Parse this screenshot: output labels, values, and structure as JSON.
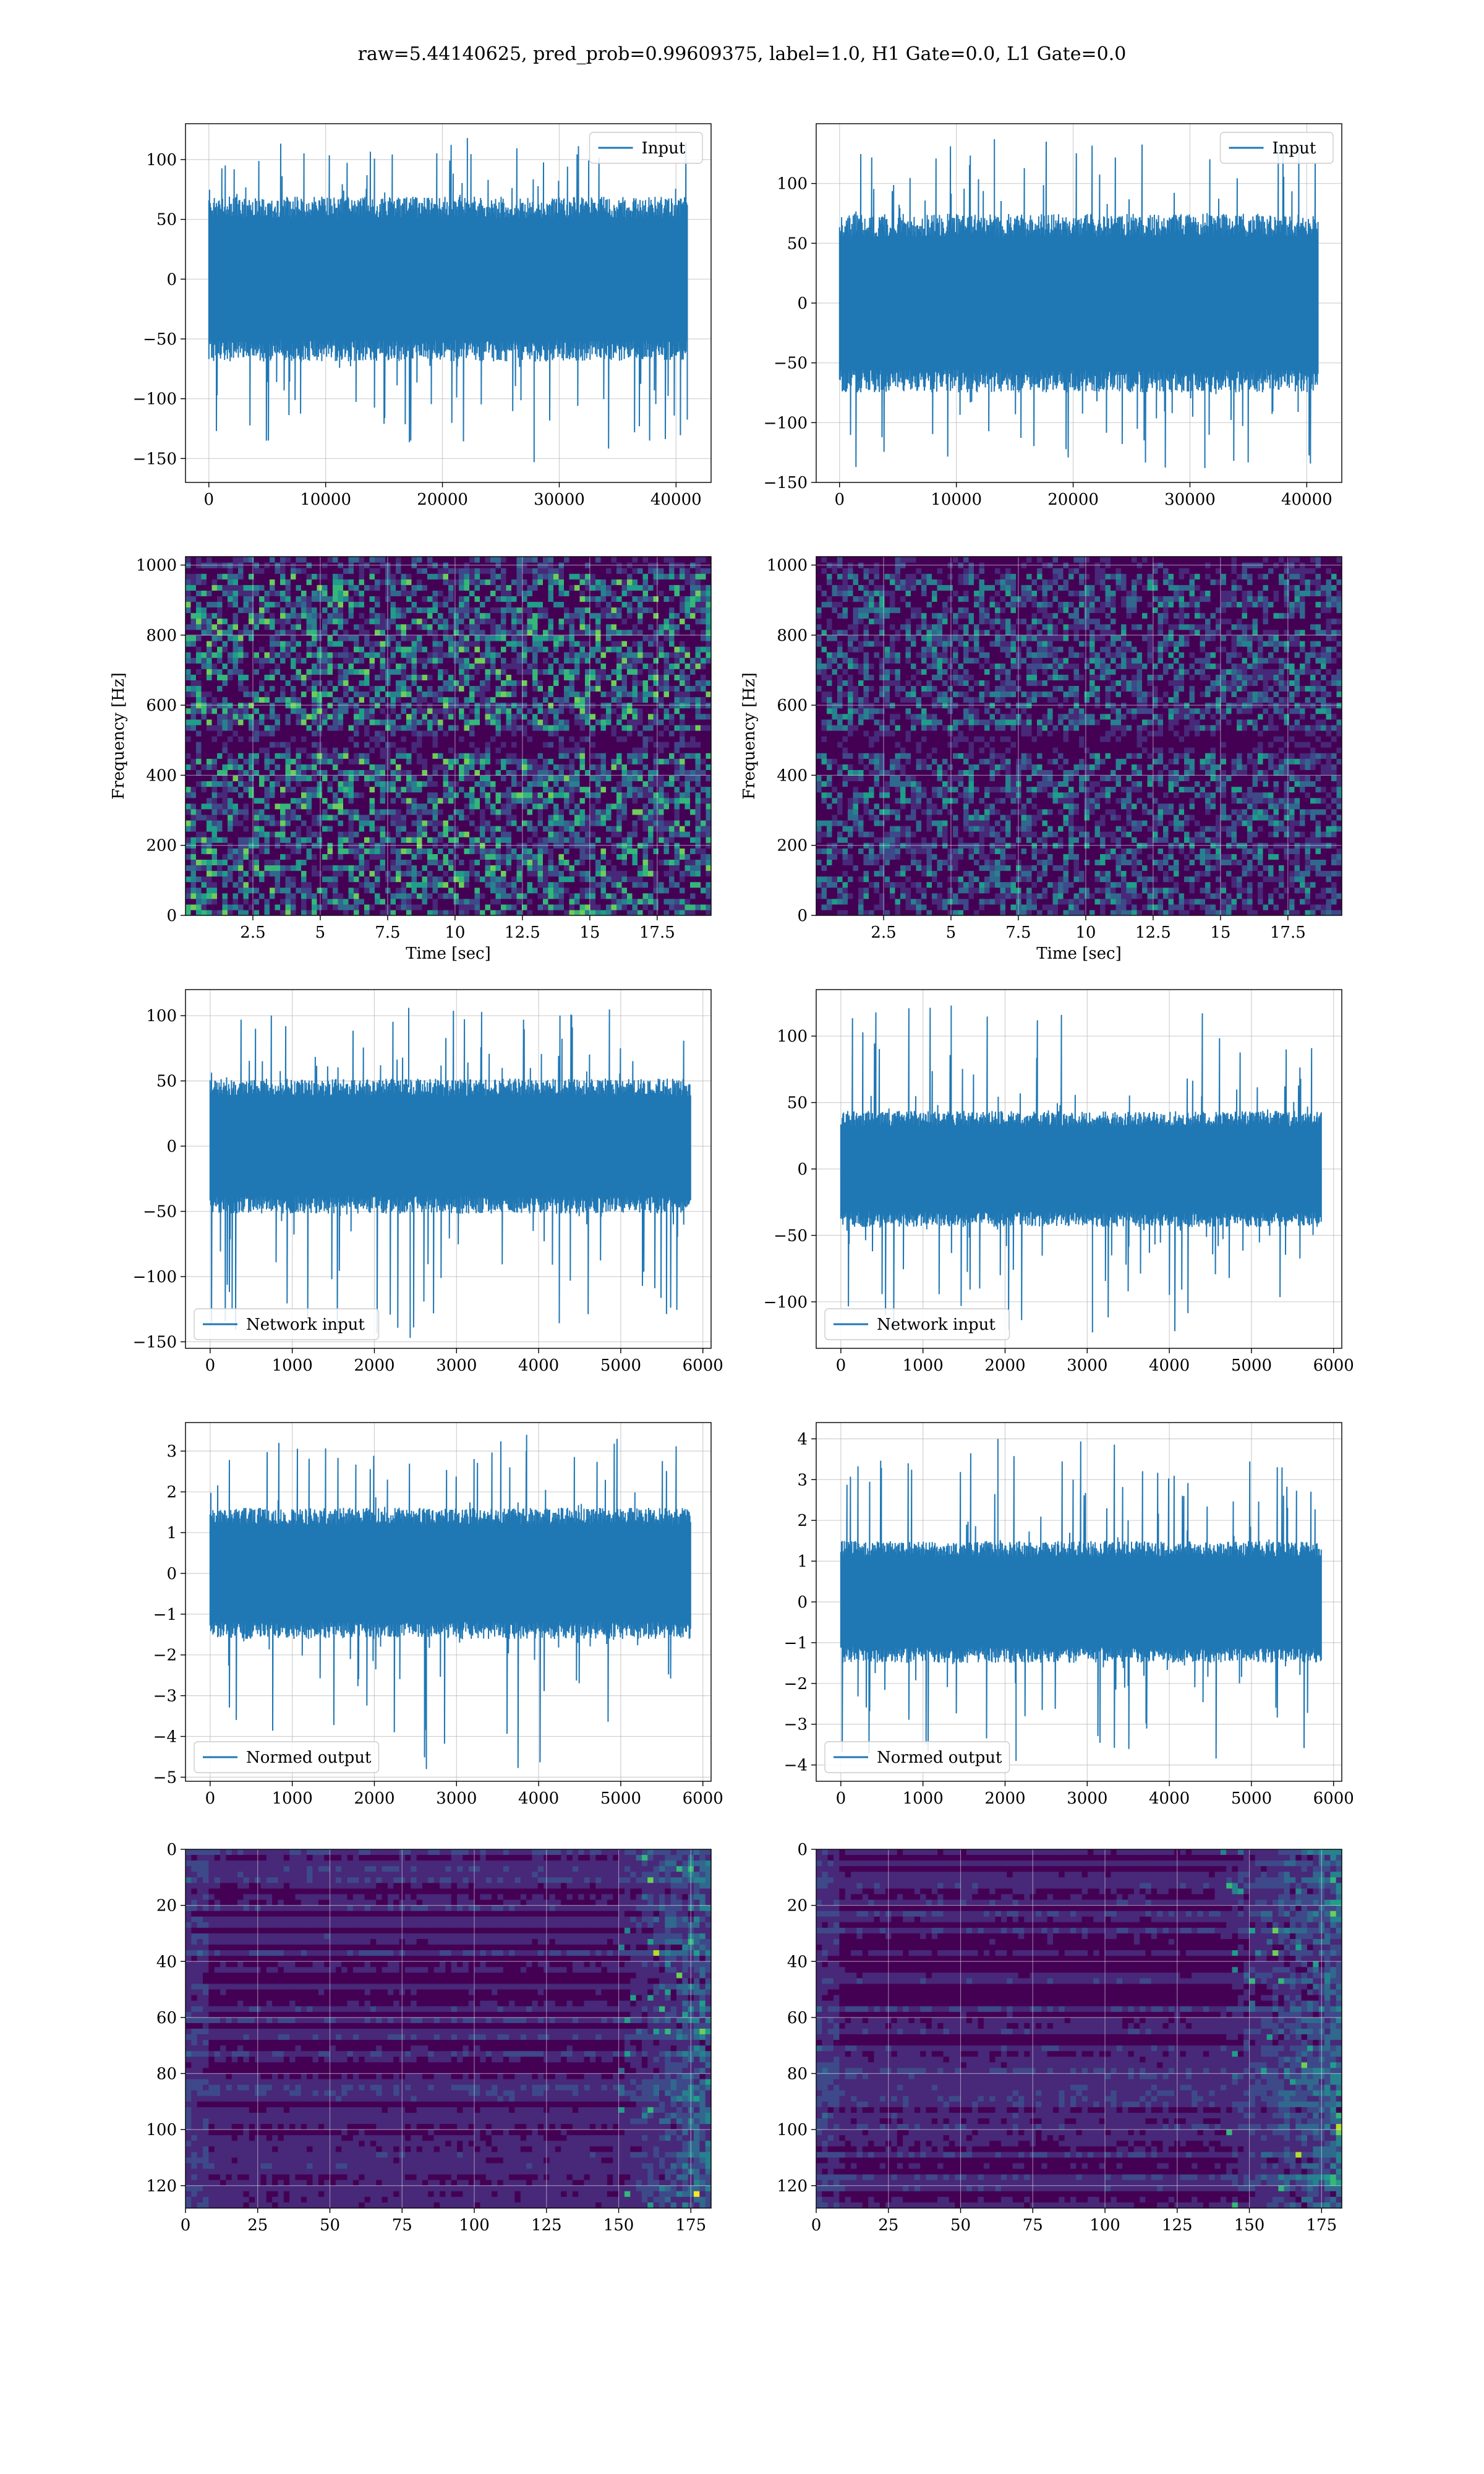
{
  "title": "raw=5.44140625, pred_prob=0.99609375, label=1.0, H1 Gate=0.0, L1 Gate=0.0",
  "colors": {
    "line": "#1f77b4",
    "grid": "#b0b0b0",
    "viridis": [
      "#440154",
      "#482878",
      "#3e4989",
      "#31688e",
      "#26828e",
      "#1f9e89",
      "#35b779",
      "#6ece58",
      "#b5de2b",
      "#fde725"
    ]
  },
  "chart_data": [
    {
      "id": "input-h1",
      "type": "line",
      "legend": "Input",
      "legend_loc": "upper-right",
      "xlim": [
        -2000,
        43000
      ],
      "ylim": [
        -170,
        130
      ],
      "xticks": [
        0,
        10000,
        20000,
        30000,
        40000
      ],
      "yticks": [
        -150,
        -100,
        -50,
        0,
        50,
        100
      ],
      "signal": {
        "x_start": 0,
        "x_end": 40960,
        "band": [
          -60,
          60
        ],
        "max": 118,
        "min": -153
      },
      "xlabel": "",
      "ylabel": ""
    },
    {
      "id": "input-l1",
      "type": "line",
      "legend": "Input",
      "legend_loc": "upper-right",
      "xlim": [
        -2000,
        43000
      ],
      "ylim": [
        -150,
        150
      ],
      "xticks": [
        0,
        10000,
        20000,
        30000,
        40000
      ],
      "yticks": [
        -150,
        -100,
        -50,
        0,
        50,
        100
      ],
      "signal": {
        "x_start": 0,
        "x_end": 40960,
        "band": [
          -65,
          65
        ],
        "max": 137,
        "min": -138
      },
      "xlabel": "",
      "ylabel": ""
    },
    {
      "id": "spec-h1",
      "type": "heatmap",
      "variant": "spectrogram",
      "xlim": [
        0,
        19.5
      ],
      "ylim": [
        0,
        1024
      ],
      "xticks": [
        2.5,
        5.0,
        7.5,
        10.0,
        12.5,
        15.0,
        17.5
      ],
      "yticks": [
        0,
        200,
        400,
        600,
        800,
        1000
      ],
      "xlabel": "Time [sec]",
      "ylabel": "Frequency [Hz]"
    },
    {
      "id": "spec-l1",
      "type": "heatmap",
      "variant": "spectrogram",
      "xlim": [
        0,
        19.5
      ],
      "ylim": [
        0,
        1024
      ],
      "xticks": [
        2.5,
        5.0,
        7.5,
        10.0,
        12.5,
        15.0,
        17.5
      ],
      "yticks": [
        0,
        200,
        400,
        600,
        800,
        1000
      ],
      "xlabel": "Time [sec]",
      "ylabel": "Frequency [Hz]"
    },
    {
      "id": "netin-h1",
      "type": "line",
      "legend": "Network input",
      "legend_loc": "lower-left",
      "xlim": [
        -300,
        6100
      ],
      "ylim": [
        -155,
        120
      ],
      "xticks": [
        0,
        1000,
        2000,
        3000,
        4000,
        5000,
        6000
      ],
      "yticks": [
        -150,
        -100,
        -50,
        0,
        50,
        100
      ],
      "signal": {
        "x_start": 0,
        "x_end": 5850,
        "band": [
          -45,
          45
        ],
        "max": 106,
        "min": -147
      },
      "xlabel": "",
      "ylabel": ""
    },
    {
      "id": "netin-l1",
      "type": "line",
      "legend": "Network input",
      "legend_loc": "lower-left",
      "xlim": [
        -300,
        6100
      ],
      "ylim": [
        -135,
        135
      ],
      "xticks": [
        0,
        1000,
        2000,
        3000,
        4000,
        5000,
        6000
      ],
      "yticks": [
        -100,
        -50,
        0,
        50,
        100
      ],
      "signal": {
        "x_start": 0,
        "x_end": 5850,
        "band": [
          -38,
          38
        ],
        "max": 123,
        "min": -123
      },
      "xlabel": "",
      "ylabel": ""
    },
    {
      "id": "norm-h1",
      "type": "line",
      "legend": "Normed output",
      "legend_loc": "lower-left",
      "xlim": [
        -300,
        6100
      ],
      "ylim": [
        -5.1,
        3.7
      ],
      "xticks": [
        0,
        1000,
        2000,
        3000,
        4000,
        5000,
        6000
      ],
      "yticks": [
        -5,
        -4,
        -3,
        -2,
        -1,
        0,
        1,
        2,
        3
      ],
      "signal": {
        "x_start": 0,
        "x_end": 5850,
        "band": [
          -1.4,
          1.4
        ],
        "max": 3.4,
        "min": -4.8
      },
      "xlabel": "",
      "ylabel": ""
    },
    {
      "id": "norm-l1",
      "type": "line",
      "legend": "Normed output",
      "legend_loc": "lower-left",
      "xlim": [
        -300,
        6100
      ],
      "ylim": [
        -4.4,
        4.4
      ],
      "xticks": [
        0,
        1000,
        2000,
        3000,
        4000,
        5000,
        6000
      ],
      "yticks": [
        -4,
        -3,
        -2,
        -1,
        0,
        1,
        2,
        3,
        4
      ],
      "signal": {
        "x_start": 0,
        "x_end": 5850,
        "band": [
          -1.3,
          1.3
        ],
        "max": 4.0,
        "min": -3.9
      },
      "xlabel": "",
      "ylabel": ""
    },
    {
      "id": "feat-h1",
      "type": "heatmap",
      "variant": "feature-map",
      "y_inverted": true,
      "xlim": [
        0,
        182
      ],
      "ylim": [
        0,
        128
      ],
      "xticks": [
        0,
        25,
        50,
        75,
        100,
        125,
        150,
        175
      ],
      "yticks": [
        0,
        20,
        40,
        60,
        80,
        100,
        120
      ],
      "hot_start": 150,
      "xlabel": "",
      "ylabel": ""
    },
    {
      "id": "feat-l1",
      "type": "heatmap",
      "variant": "feature-map",
      "y_inverted": true,
      "xlim": [
        0,
        182
      ],
      "ylim": [
        0,
        128
      ],
      "xticks": [
        0,
        25,
        50,
        75,
        100,
        125,
        150,
        175
      ],
      "yticks": [
        0,
        20,
        40,
        60,
        80,
        100,
        120
      ],
      "hot_start": 140,
      "xlabel": "",
      "ylabel": ""
    }
  ]
}
